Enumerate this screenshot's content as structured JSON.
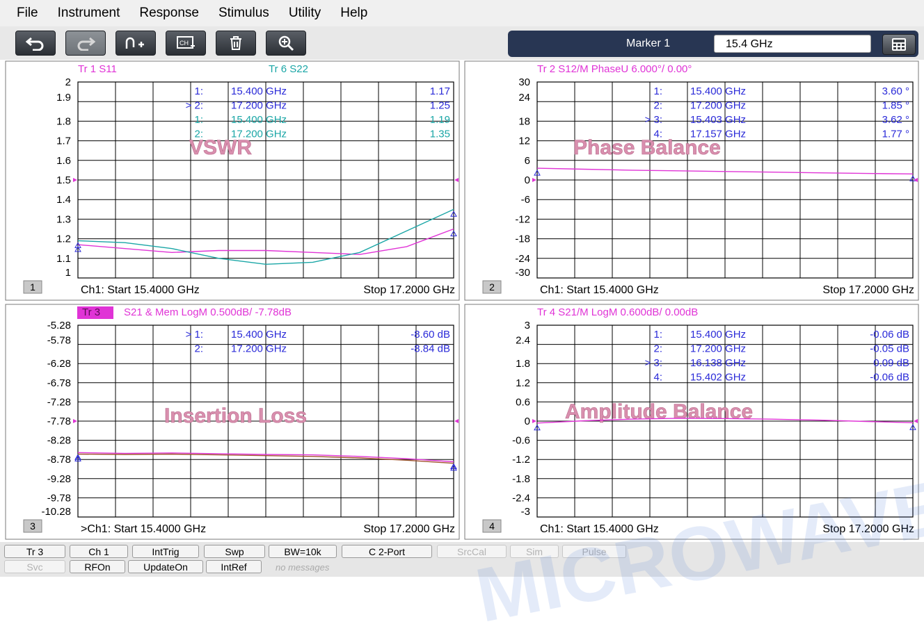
{
  "menu": [
    "File",
    "Instrument",
    "Response",
    "Stimulus",
    "Utility",
    "Help"
  ],
  "toolbar": {
    "buttons": [
      {
        "icon": "undo-icon",
        "enabled": true
      },
      {
        "icon": "redo-icon",
        "enabled": false
      },
      {
        "icon": "add-marker-icon",
        "enabled": true
      },
      {
        "icon": "add-channel-icon",
        "enabled": true
      },
      {
        "icon": "trash-icon",
        "enabled": true
      },
      {
        "icon": "zoom-in-icon",
        "enabled": true
      }
    ],
    "marker_label": "Marker 1",
    "marker_value": "15.4 GHz",
    "calculator_icon": "calculator-icon"
  },
  "colors": {
    "magenta": "#e033d6",
    "cyan": "#1aa6a6",
    "blue": "#2a2ad8",
    "brown": "#a0522d",
    "watermark": "#3b6fd4"
  },
  "charts": [
    {
      "number": "1",
      "title_magenta": "Tr  1  S11",
      "title_cyan": "Tr  6  S22",
      "title_highlight": false,
      "annotation": "VSWR",
      "yticks": [
        "2",
        "1.9",
        "1.8",
        "1.7",
        "1.6",
        "1.5",
        "1.4",
        "1.3",
        "1.2",
        "1.1",
        "1"
      ],
      "ymin": 1.0,
      "ymax": 2.0,
      "footer_left": "Ch1:  Start   15.4000 GHz",
      "footer_right": "Stop  17.2000 GHz",
      "markers": [
        {
          "idx": "1:",
          "freq": "15.400  GHz",
          "val": "1.17",
          "color": "blue"
        },
        {
          "idx": "> 2:",
          "freq": "17.200  GHz",
          "val": "1.25",
          "color": "blue"
        },
        {
          "idx": "1:",
          "freq": "15.400  GHz",
          "val": "1.19",
          "color": "cyan"
        },
        {
          "idx": "2:",
          "freq": "17.200  GHz",
          "val": "1.35",
          "color": "cyan"
        }
      ]
    },
    {
      "number": "2",
      "title_magenta": "Tr  2  S12/M PhaseU 6.000°/  0.00°",
      "title_cyan": "",
      "title_highlight": false,
      "annotation": "Phase Balance",
      "yticks": [
        "30",
        "24",
        "18",
        "12",
        "6",
        "0",
        "-6",
        "-12",
        "-18",
        "-24",
        "-30"
      ],
      "ymin": -30,
      "ymax": 30,
      "footer_left": "Ch1:  Start   15.4000 GHz",
      "footer_right": "Stop  17.2000 GHz",
      "markers": [
        {
          "idx": "1:",
          "freq": "15.400  GHz",
          "val": "3.60 °",
          "color": "blue"
        },
        {
          "idx": "2:",
          "freq": "17.200  GHz",
          "val": "1.85 °",
          "color": "blue"
        },
        {
          "idx": "> 3:",
          "freq": "15.403  GHz",
          "val": "3.62 °",
          "color": "blue"
        },
        {
          "idx": "4:",
          "freq": "17.157  GHz",
          "val": "1.77 °",
          "color": "blue"
        }
      ]
    },
    {
      "number": "3",
      "title_magenta": "S21 & Mem LogM 0.500dB/  -7.78dB",
      "title_highlight_text": "Tr  3",
      "title_cyan": "",
      "title_highlight": true,
      "annotation": "Insertion Loss",
      "yticks": [
        "-5.28",
        "-5.78",
        "-6.28",
        "-6.78",
        "-7.28",
        "-7.78",
        "-8.28",
        "-8.78",
        "-9.28",
        "-9.78",
        "-10.28"
      ],
      "ymin": -10.28,
      "ymax": -5.28,
      "footer_left": ">Ch1:  Start   15.4000 GHz",
      "footer_right": "Stop  17.2000 GHz",
      "markers": [
        {
          "idx": "> 1:",
          "freq": "15.400  GHz",
          "val": "-8.60 dB",
          "color": "blue"
        },
        {
          "idx": "2:",
          "freq": "17.200  GHz",
          "val": "-8.84 dB",
          "color": "blue"
        }
      ]
    },
    {
      "number": "4",
      "title_magenta": "Tr  4  S21/M LogM 0.600dB/  0.00dB",
      "title_cyan": "",
      "title_highlight": false,
      "annotation": "Amplitude Balance",
      "yticks": [
        "3",
        "2.4",
        "1.8",
        "1.2",
        "0.6",
        "0",
        "-0.6",
        "-1.2",
        "-1.8",
        "-2.4",
        "-3"
      ],
      "ymin": -3,
      "ymax": 3,
      "footer_left": "Ch1:  Start   15.4000 GHz",
      "footer_right": "Stop  17.2000 GHz",
      "markers": [
        {
          "idx": "1:",
          "freq": "15.400  GHz",
          "val": "-0.06 dB",
          "color": "blue"
        },
        {
          "idx": "2:",
          "freq": "17.200  GHz",
          "val": "-0.05 dB",
          "color": "blue"
        },
        {
          "idx": "> 3:",
          "freq": "16.138  GHz",
          "val": "0.09 dB",
          "color": "blue"
        },
        {
          "idx": "4:",
          "freq": "15.402  GHz",
          "val": "-0.06 dB",
          "color": "blue"
        }
      ]
    }
  ],
  "chart_data": [
    {
      "type": "line",
      "title": "VSWR",
      "x": [
        15.4,
        15.625,
        15.85,
        16.075,
        16.3,
        16.525,
        16.75,
        16.975,
        17.2
      ],
      "xlim": [
        15.4,
        17.2
      ],
      "ylim": [
        1.0,
        2.0
      ],
      "series": [
        {
          "name": "Tr 1 S11",
          "color": "#e033d6",
          "values": [
            1.17,
            1.15,
            1.13,
            1.14,
            1.14,
            1.13,
            1.12,
            1.16,
            1.25
          ]
        },
        {
          "name": "Tr 6 S22",
          "color": "#1aa6a6",
          "values": [
            1.19,
            1.18,
            1.15,
            1.1,
            1.07,
            1.08,
            1.13,
            1.24,
            1.35
          ]
        }
      ]
    },
    {
      "type": "line",
      "title": "Phase Balance",
      "x": [
        15.4,
        15.625,
        15.85,
        16.075,
        16.3,
        16.525,
        16.75,
        16.975,
        17.2
      ],
      "xlim": [
        15.4,
        17.2
      ],
      "ylim": [
        -30,
        30
      ],
      "series": [
        {
          "name": "Tr 2 S12/M PhaseU",
          "color": "#e033d6",
          "values": [
            3.6,
            3.3,
            3.0,
            2.8,
            2.6,
            2.4,
            2.2,
            2.0,
            1.85
          ]
        }
      ]
    },
    {
      "type": "line",
      "title": "Insertion Loss",
      "x": [
        15.4,
        15.625,
        15.85,
        16.075,
        16.3,
        16.525,
        16.75,
        16.975,
        17.2
      ],
      "xlim": [
        15.4,
        17.2
      ],
      "ylim": [
        -10.28,
        -5.28
      ],
      "series": [
        {
          "name": "Tr 3 S21",
          "color": "#e033d6",
          "values": [
            -8.6,
            -8.62,
            -8.61,
            -8.63,
            -8.65,
            -8.66,
            -8.7,
            -8.76,
            -8.84
          ]
        },
        {
          "name": "Mem",
          "color": "#a0522d",
          "values": [
            -8.64,
            -8.65,
            -8.64,
            -8.66,
            -8.68,
            -8.7,
            -8.74,
            -8.8,
            -8.88
          ]
        }
      ]
    },
    {
      "type": "line",
      "title": "Amplitude Balance",
      "x": [
        15.4,
        15.625,
        15.85,
        16.075,
        16.3,
        16.525,
        16.75,
        16.975,
        17.2
      ],
      "xlim": [
        15.4,
        17.2
      ],
      "ylim": [
        -3,
        3
      ],
      "series": [
        {
          "name": "Tr 4 S21/M LogM",
          "color": "#e033d6",
          "values": [
            -0.06,
            0.01,
            0.06,
            0.09,
            0.08,
            0.06,
            0.03,
            -0.01,
            -0.05
          ]
        }
      ]
    }
  ],
  "status": {
    "row1": [
      {
        "label": "Tr 3",
        "dim": false
      },
      {
        "label": "Ch 1",
        "dim": false
      },
      {
        "label": "IntTrig",
        "dim": false
      },
      {
        "label": "Swp",
        "dim": false
      },
      {
        "label": "BW=10k",
        "dim": false
      },
      {
        "label": "C  2-Port",
        "dim": false
      },
      {
        "label": "SrcCal",
        "dim": true
      },
      {
        "label": "Sim",
        "dim": true
      },
      {
        "label": "Pulse",
        "dim": true
      }
    ],
    "row2": [
      {
        "label": "Svc",
        "dim": true
      },
      {
        "label": "RFOn",
        "dim": false
      },
      {
        "label": "UpdateOn",
        "dim": false
      },
      {
        "label": "IntRef",
        "dim": false
      }
    ],
    "no_messages": "no messages"
  },
  "watermark": "MICROWAVE"
}
